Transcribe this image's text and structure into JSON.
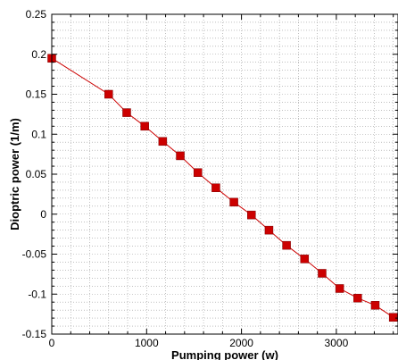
{
  "chart_data": {
    "type": "line",
    "title": "",
    "xlabel": "Pumping power (w)",
    "ylabel": "Dioptric power (1/m)",
    "xlim": [
      0,
      3650
    ],
    "ylim": [
      -0.15,
      0.25
    ],
    "xticks": [
      0,
      1000,
      2000,
      3000
    ],
    "xtick_labels": [
      "0",
      "1000",
      "2000",
      "3000"
    ],
    "yticks": [
      -0.15,
      -0.1,
      -0.05,
      0,
      0.05,
      0.1,
      0.15,
      0.2,
      0.25
    ],
    "ytick_labels": [
      "-0.15",
      "-0.1",
      "-0.05",
      "0",
      "0.05",
      "0.1",
      "0.15",
      "0.2",
      "0.25"
    ],
    "grid": true,
    "legend": "none",
    "series": [
      {
        "marker": "square",
        "color": "#cc0000",
        "x": [
          0,
          600,
          790,
          980,
          1170,
          1355,
          1540,
          1730,
          1920,
          2105,
          2290,
          2475,
          2665,
          2850,
          3035,
          3225,
          3410,
          3600
        ],
        "y": [
          0.195,
          0.15,
          0.127,
          0.11,
          0.091,
          0.073,
          0.052,
          0.033,
          0.015,
          -0.001,
          -0.02,
          -0.039,
          -0.056,
          -0.074,
          -0.093,
          -0.105,
          -0.114,
          -0.129
        ]
      }
    ]
  }
}
